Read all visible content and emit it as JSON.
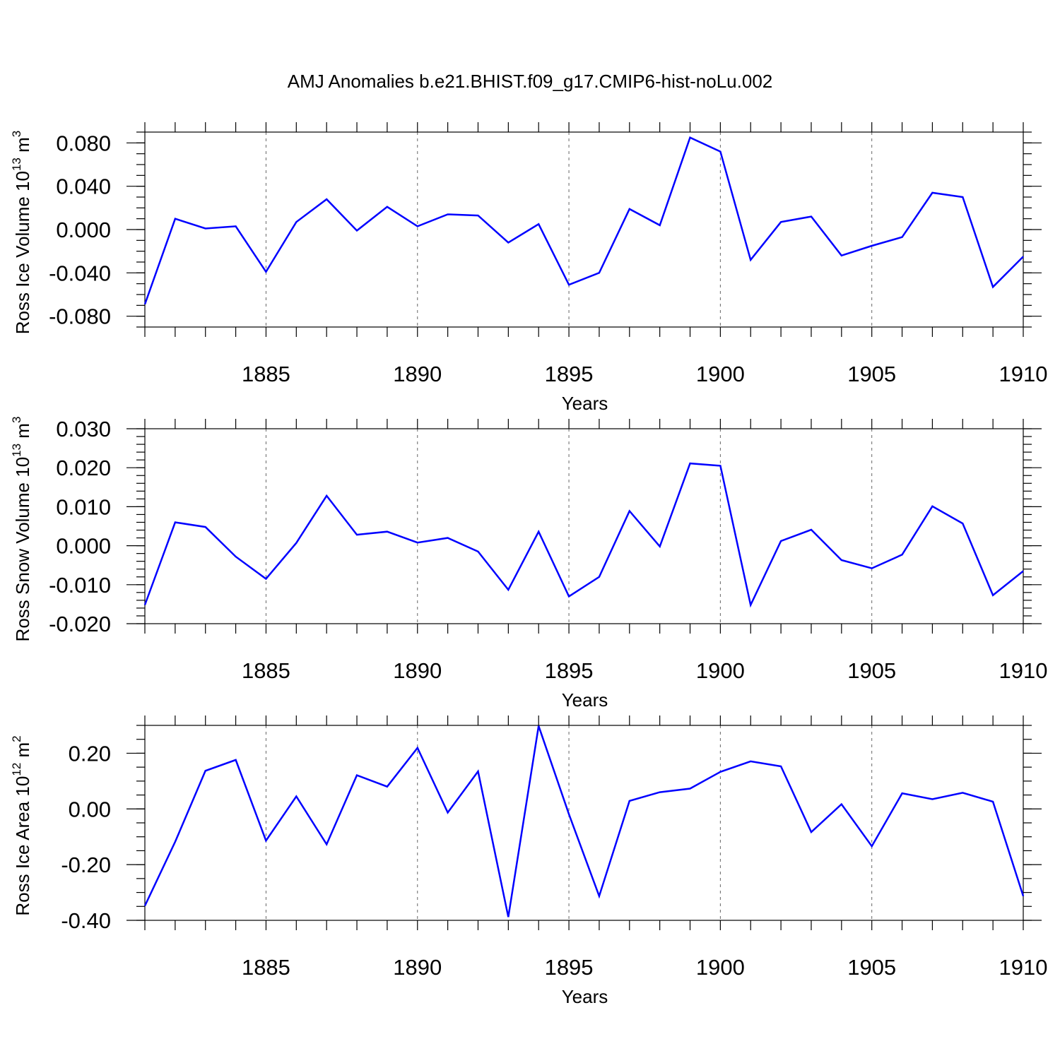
{
  "title": "AMJ Anomalies b.e21.BHIST.f09_g17.CMIP6-hist-noLu.002",
  "line_color": "#0000ff",
  "chart_data": [
    {
      "type": "line",
      "ylabel": "Ross Ice Volume",
      "yunit_base": "10",
      "yunit_exp": "13",
      "yunit_rest": " m",
      "yunit_pow": "3",
      "xlabel": "Years",
      "xlim": [
        1881,
        1910
      ],
      "ylim": [
        -0.09,
        0.09
      ],
      "xticks": [
        1885,
        1890,
        1895,
        1900,
        1905,
        1910
      ],
      "xtick_labels": [
        "1885",
        "1890",
        "1895",
        "1900",
        "1905",
        "1910"
      ],
      "yticks": [
        -0.08,
        -0.04,
        0.0,
        0.04,
        0.08
      ],
      "ytick_labels": [
        "-0.080",
        "-0.040",
        "0.000",
        "0.040",
        "0.080"
      ],
      "y_minor_step": 0.01,
      "x": [
        1881,
        1882,
        1883,
        1884,
        1885,
        1886,
        1887,
        1888,
        1889,
        1890,
        1891,
        1892,
        1893,
        1894,
        1895,
        1896,
        1897,
        1898,
        1899,
        1900,
        1901,
        1902,
        1903,
        1904,
        1905,
        1906,
        1907,
        1908,
        1909,
        1910
      ],
      "values": [
        -0.069,
        0.01,
        0.001,
        0.003,
        -0.039,
        0.007,
        0.028,
        -0.001,
        0.021,
        0.003,
        0.014,
        0.013,
        -0.012,
        0.005,
        -0.051,
        -0.04,
        0.019,
        0.004,
        0.085,
        0.072,
        -0.028,
        0.007,
        0.012,
        -0.024,
        -0.015,
        -0.007,
        0.034,
        0.03,
        -0.053,
        -0.025
      ]
    },
    {
      "type": "line",
      "ylabel": "Ross Snow Volume",
      "yunit_base": "10",
      "yunit_exp": "13",
      "yunit_rest": " m",
      "yunit_pow": "3",
      "xlabel": "Years",
      "xlim": [
        1881,
        1910
      ],
      "ylim": [
        -0.02,
        0.03
      ],
      "xticks": [
        1885,
        1890,
        1895,
        1900,
        1905,
        1910
      ],
      "xtick_labels": [
        "1885",
        "1890",
        "1895",
        "1900",
        "1905",
        "1910"
      ],
      "yticks": [
        -0.02,
        -0.01,
        0.0,
        0.01,
        0.02,
        0.03
      ],
      "ytick_labels": [
        "-0.020",
        "-0.010",
        "0.000",
        "0.010",
        "0.020",
        "0.030"
      ],
      "y_minor_step": 0.002,
      "x": [
        1881,
        1882,
        1883,
        1884,
        1885,
        1886,
        1887,
        1888,
        1889,
        1890,
        1891,
        1892,
        1893,
        1894,
        1895,
        1896,
        1897,
        1898,
        1899,
        1900,
        1901,
        1902,
        1903,
        1904,
        1905,
        1906,
        1907,
        1908,
        1909,
        1910
      ],
      "values": [
        -0.0152,
        0.006,
        0.0048,
        -0.0028,
        -0.0085,
        0.0007,
        0.0128,
        0.0028,
        0.0036,
        0.0008,
        0.002,
        -0.0015,
        -0.0113,
        0.0036,
        -0.013,
        -0.008,
        0.0089,
        -0.0002,
        0.0211,
        0.0205,
        -0.0152,
        0.0012,
        0.0041,
        -0.0037,
        -0.0058,
        -0.0023,
        0.0101,
        0.0057,
        -0.0127,
        -0.0065
      ]
    },
    {
      "type": "line",
      "ylabel": "Ross Ice Area",
      "yunit_base": "10",
      "yunit_exp": "12",
      "yunit_rest": " m",
      "yunit_pow": "2",
      "xlabel": "Years",
      "xlim": [
        1881,
        1910
      ],
      "ylim": [
        -0.4,
        0.3
      ],
      "xticks": [
        1885,
        1890,
        1895,
        1900,
        1905,
        1910
      ],
      "xtick_labels": [
        "1885",
        "1890",
        "1895",
        "1900",
        "1905",
        "1910"
      ],
      "yticks": [
        -0.4,
        -0.2,
        0.0,
        0.2
      ],
      "ytick_labels": [
        "-0.40",
        "-0.20",
        "0.00",
        "0.20"
      ],
      "y_minor_step": 0.05,
      "x": [
        1881,
        1882,
        1883,
        1884,
        1885,
        1886,
        1887,
        1888,
        1889,
        1890,
        1891,
        1892,
        1893,
        1894,
        1895,
        1896,
        1897,
        1898,
        1899,
        1900,
        1901,
        1902,
        1903,
        1904,
        1905,
        1906,
        1907,
        1908,
        1909,
        1910
      ],
      "values": [
        -0.348,
        -0.118,
        0.137,
        0.176,
        -0.114,
        0.045,
        -0.127,
        0.121,
        0.08,
        0.219,
        -0.013,
        0.135,
        -0.388,
        0.298,
        -0.019,
        -0.313,
        0.029,
        0.06,
        0.073,
        0.133,
        0.171,
        0.153,
        -0.083,
        0.017,
        -0.134,
        0.056,
        0.035,
        0.058,
        0.026,
        -0.313
      ]
    }
  ]
}
